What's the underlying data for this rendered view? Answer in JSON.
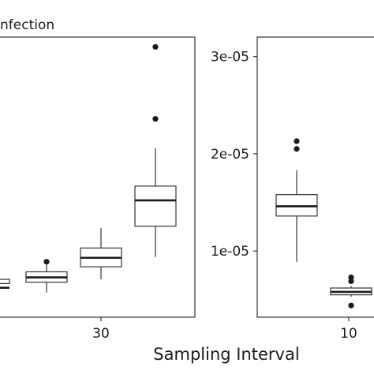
{
  "chart_data": [
    {
      "type": "box",
      "title": "nfection",
      "xlabel": "",
      "ylabel": "",
      "x_tick_labels": [
        "30"
      ],
      "y_tick_labels": [],
      "grid": false,
      "series": [
        {
          "category": "box-1",
          "stats": {
            "whisker_low": null,
            "q1": null,
            "median": null,
            "q3": null,
            "whisker_high": null
          },
          "outliers": []
        },
        {
          "category": "box-2",
          "stats": {
            "whisker_low": null,
            "q1": null,
            "median": null,
            "q3": null,
            "whisker_high": null
          },
          "outliers": []
        },
        {
          "category": "box-3",
          "stats": {
            "whisker_low": null,
            "q1": null,
            "median": null,
            "q3": null,
            "whisker_high": null
          },
          "outliers": []
        },
        {
          "category": "box-4",
          "stats": {
            "whisker_low": null,
            "q1": null,
            "median": null,
            "q3": null,
            "whisker_high": null
          },
          "outliers": [
            null,
            null
          ]
        }
      ]
    },
    {
      "type": "box",
      "title": "",
      "xlabel": "",
      "ylabel": "",
      "x_tick_labels": [
        "10"
      ],
      "y_tick_labels": [
        "1e-05",
        "2e-05",
        "3e-05"
      ],
      "ylim": [
        3.2e-06,
        3.2e-05
      ],
      "grid": false,
      "series": [
        {
          "category": "box-1",
          "stats": {
            "whisker_low": 8.9e-06,
            "q1": 1.36e-05,
            "median": 1.46e-05,
            "q3": 1.58e-05,
            "whisker_high": 1.83e-05
          },
          "outliers": [
            2.05e-05,
            2.13e-05
          ]
        },
        {
          "category": "box-2",
          "stats": {
            "whisker_low": 5.3e-06,
            "q1": 5.5e-06,
            "median": 5.8e-06,
            "q3": 6.2e-06,
            "whisker_high": 6.4e-06
          },
          "outliers": [
            4.4e-06,
            6.9e-06,
            7.3e-06
          ]
        }
      ]
    }
  ],
  "shared_xlabel": "Sampling Interval"
}
